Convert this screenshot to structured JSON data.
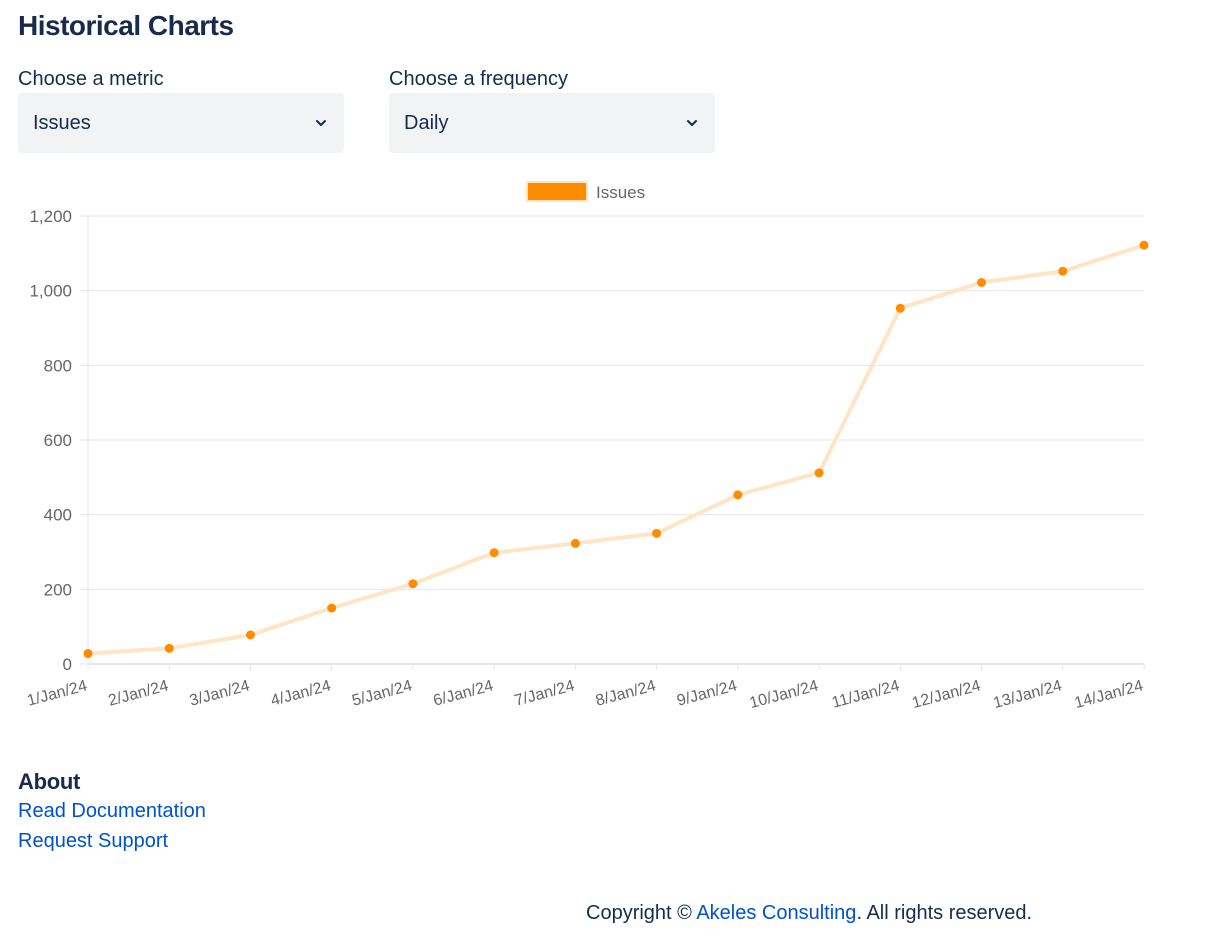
{
  "page": {
    "title": "Historical Charts"
  },
  "controls": {
    "metric": {
      "label": "Choose a metric",
      "selected": "Issues",
      "icon": "chevron-down-icon"
    },
    "frequency": {
      "label": "Choose a frequency",
      "selected": "Daily",
      "icon": "chevron-down-icon"
    }
  },
  "chart_data": {
    "type": "line",
    "categories": [
      "1/Jan/24",
      "2/Jan/24",
      "3/Jan/24",
      "4/Jan/24",
      "5/Jan/24",
      "6/Jan/24",
      "7/Jan/24",
      "8/Jan/24",
      "9/Jan/24",
      "10/Jan/24",
      "11/Jan/24",
      "12/Jan/24",
      "13/Jan/24",
      "14/Jan/24"
    ],
    "series": [
      {
        "name": "Issues",
        "values": [
          28,
          42,
          78,
          150,
          215,
          298,
          323,
          350,
          453,
          512,
          953,
          1022,
          1052,
          1122
        ],
        "point_color": "#ff8c00",
        "line_color": "#ffe5c4"
      }
    ],
    "ylim": [
      0,
      1200
    ],
    "yticks": [
      0,
      200,
      400,
      600,
      800,
      1000,
      1200
    ],
    "ytick_labels": [
      "0",
      "200",
      "400",
      "600",
      "800",
      "1,000",
      "1,200"
    ],
    "grid": true,
    "legend_position": "top-center",
    "xlabel": "",
    "ylabel": ""
  },
  "about": {
    "heading": "About",
    "links": [
      "Read Documentation",
      "Request Support"
    ]
  },
  "footer": {
    "prefix": "Copyright © ",
    "company": "Akeles Consulting",
    "suffix": ". All rights reserved."
  },
  "colors": {
    "text": "#172b4d",
    "link": "#0052cc",
    "select_bg": "#f1f3f5",
    "accent": "#ff8c00"
  }
}
